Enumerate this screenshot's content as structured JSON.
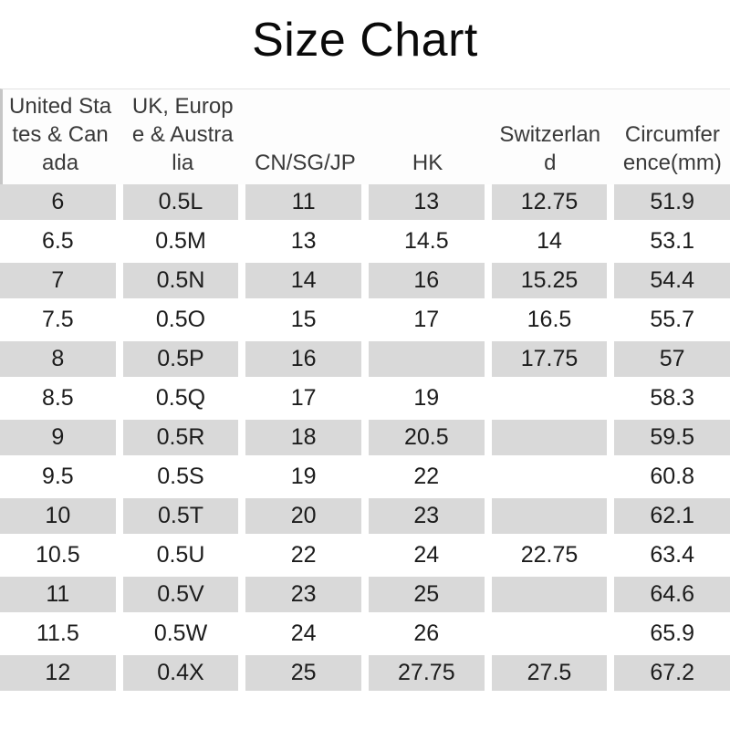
{
  "title": "Size Chart",
  "colors": {
    "stripe_row": "#d9d9d9",
    "plain_row": "#ffffff",
    "header_text": "#3a3a3a",
    "cell_text": "#1c1c1c",
    "title_text": "#0a0a0a"
  },
  "chart_data": {
    "type": "table",
    "title": "Size Chart",
    "columns": [
      "United States & Canada",
      "UK, Europe & Australia",
      "CN/SG/JP",
      "HK",
      "Switzerland",
      "Circumference(mm)"
    ],
    "rows": [
      [
        "6",
        "0.5L",
        "11",
        "13",
        "12.75",
        "51.9"
      ],
      [
        "6.5",
        "0.5M",
        "13",
        "14.5",
        "14",
        "53.1"
      ],
      [
        "7",
        "0.5N",
        "14",
        "16",
        "15.25",
        "54.4"
      ],
      [
        "7.5",
        "0.5O",
        "15",
        "17",
        "16.5",
        "55.7"
      ],
      [
        "8",
        "0.5P",
        "16",
        "",
        "17.75",
        "57"
      ],
      [
        "8.5",
        "0.5Q",
        "17",
        "19",
        "",
        "58.3"
      ],
      [
        "9",
        "0.5R",
        "18",
        "20.5",
        "",
        "59.5"
      ],
      [
        "9.5",
        "0.5S",
        "19",
        "22",
        "",
        "60.8"
      ],
      [
        "10",
        "0.5T",
        "20",
        "23",
        "",
        "62.1"
      ],
      [
        "10.5",
        "0.5U",
        "22",
        "24",
        "22.75",
        "63.4"
      ],
      [
        "11",
        "0.5V",
        "23",
        "25",
        "",
        "64.6"
      ],
      [
        "11.5",
        "0.5W",
        "24",
        "26",
        "",
        "65.9"
      ],
      [
        "12",
        "0.4X",
        "25",
        "27.75",
        "27.5",
        "67.2"
      ]
    ],
    "layout": {
      "striped_rows": "whole sizes (1st, 3rd, 5th ... rows) shaded gray",
      "header_align": "bottom",
      "cell_align": "center",
      "grid": "off"
    }
  }
}
